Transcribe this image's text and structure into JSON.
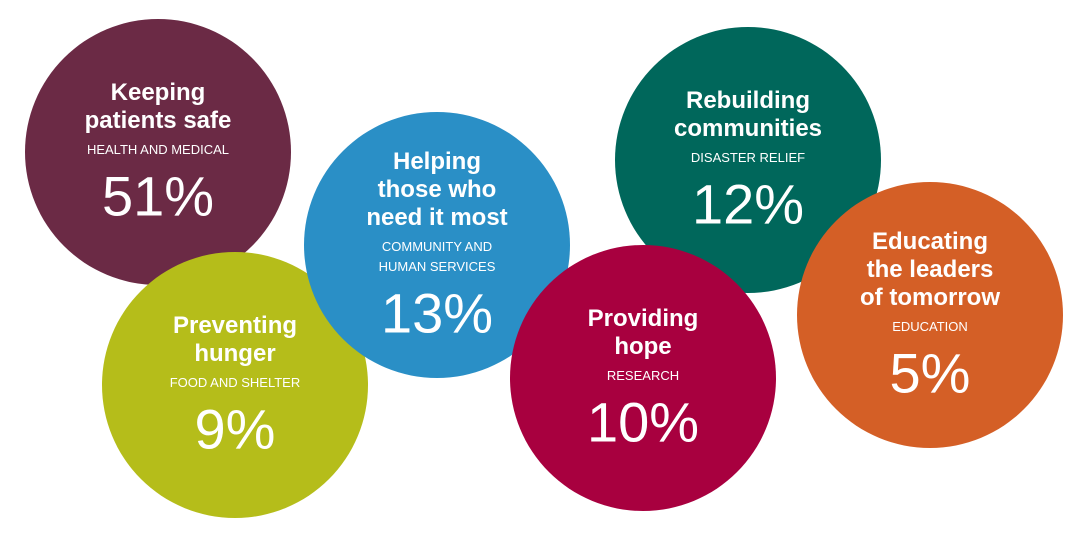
{
  "items": [
    {
      "heading": [
        "Keeping",
        "patients safe"
      ],
      "category": [
        "HEALTH AND MEDICAL"
      ],
      "share": "51%",
      "color": "#6b2a45"
    },
    {
      "heading": [
        "Preventing",
        "hunger"
      ],
      "category": [
        "FOOD AND SHELTER"
      ],
      "share": "9%",
      "color": "#b5bd1a"
    },
    {
      "heading": [
        "Helping",
        "those who",
        "need it most"
      ],
      "category": [
        "COMMUNITY AND",
        "HUMAN SERVICES"
      ],
      "share": "13%",
      "color": "#2a8fc6"
    },
    {
      "heading": [
        "Rebuilding",
        "communities"
      ],
      "category": [
        "DISASTER RELIEF"
      ],
      "share": "12%",
      "color": "#00675b"
    },
    {
      "heading": [
        "Providing",
        "hope"
      ],
      "category": [
        "RESEARCH"
      ],
      "share": "10%",
      "color": "#a8003f"
    },
    {
      "heading": [
        "Educating",
        "the leaders",
        "of tomorrow"
      ],
      "category": [
        "EDUCATION"
      ],
      "share": "5%",
      "color": "#d45f26"
    }
  ]
}
